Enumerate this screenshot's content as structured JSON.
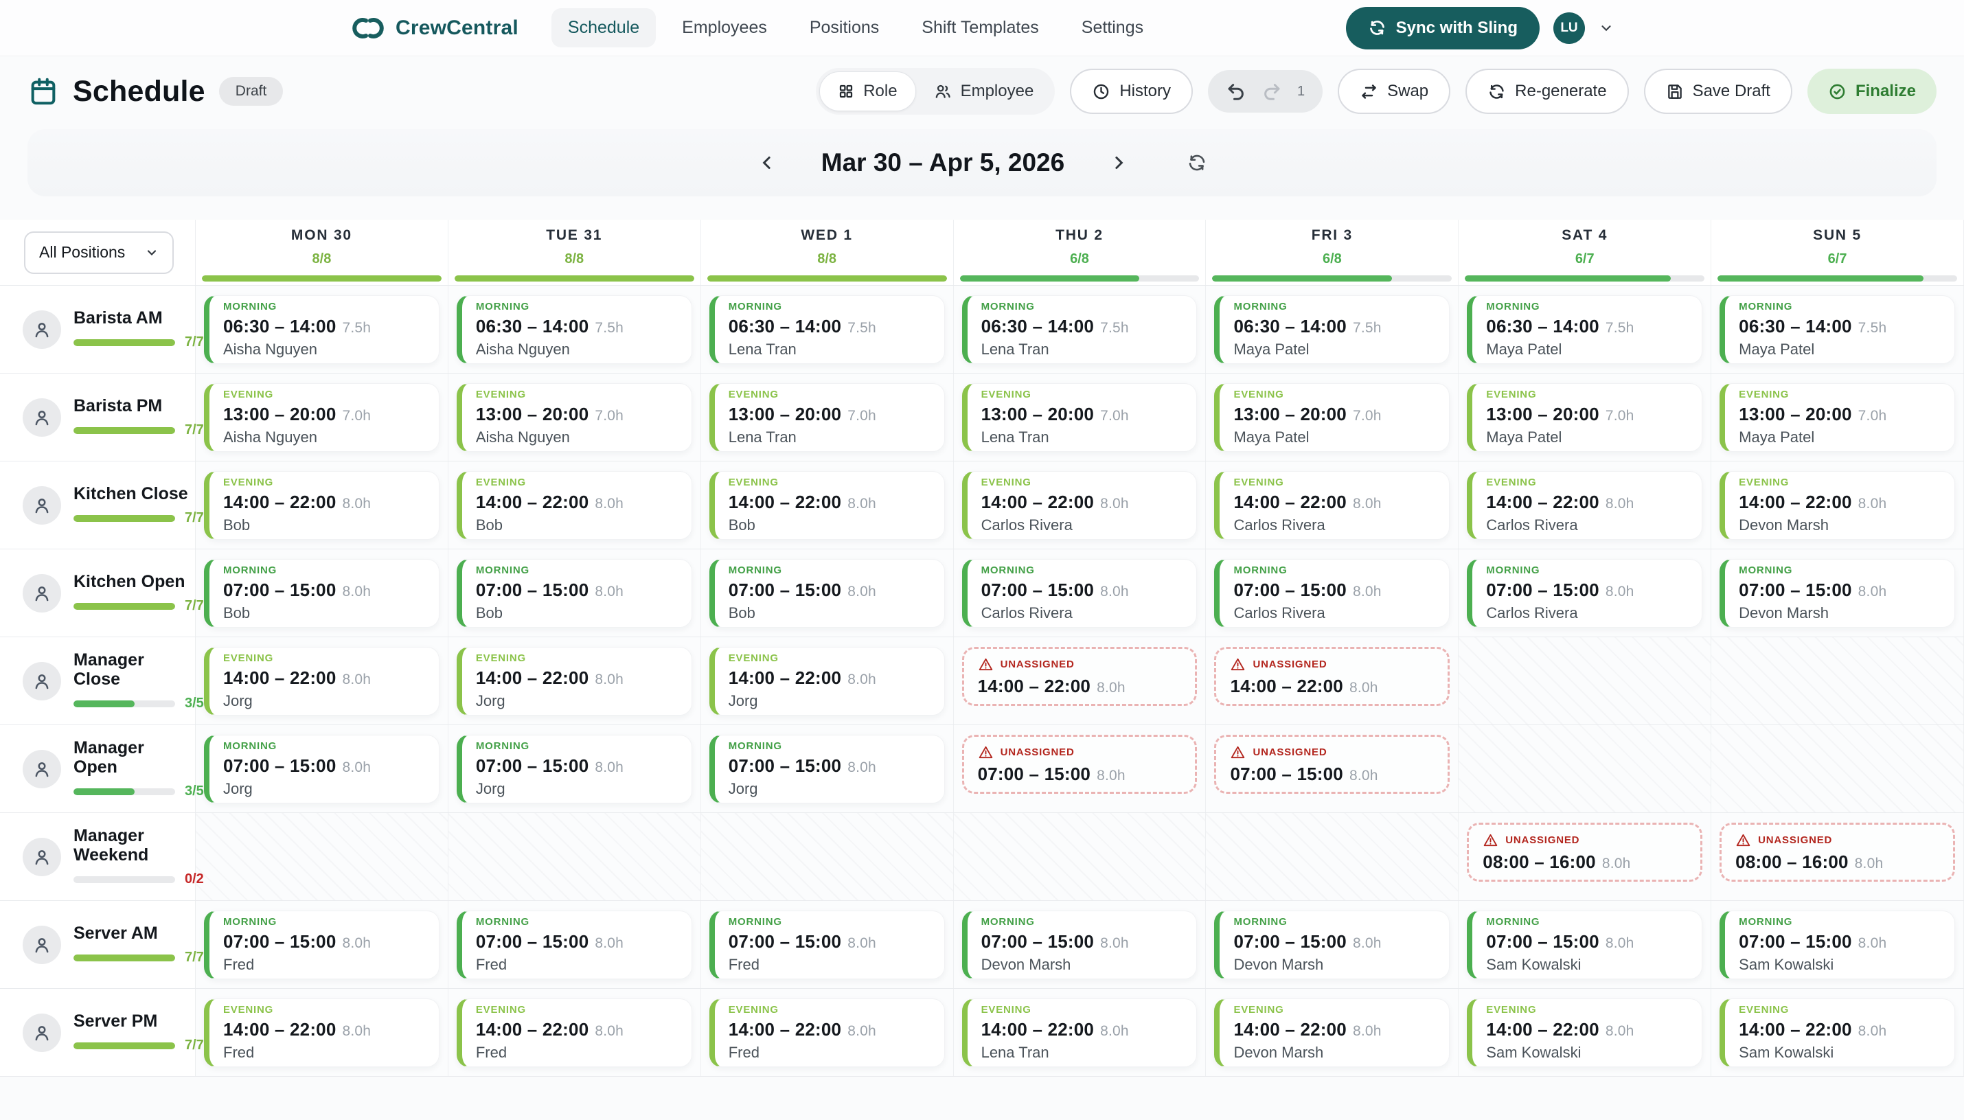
{
  "colors": {
    "brand_teal": "#175D5E",
    "green": "#4CAF50",
    "lime": "#8BC34A",
    "red": "#C62828",
    "track_gray": "#E8E9EB"
  },
  "nav": {
    "brand": "CrewCentral",
    "items": [
      {
        "label": "Schedule",
        "active": true
      },
      {
        "label": "Employees",
        "active": false
      },
      {
        "label": "Positions",
        "active": false
      },
      {
        "label": "Shift Templates",
        "active": false
      },
      {
        "label": "Settings",
        "active": false
      }
    ],
    "sync_button": "Sync with Sling",
    "avatar_initials": "LU"
  },
  "page_header": {
    "title": "Schedule",
    "status_badge": "Draft"
  },
  "toolbar": {
    "view_toggle": [
      {
        "label": "Role",
        "active": true
      },
      {
        "label": "Employee",
        "active": false
      }
    ],
    "history_label": "History",
    "undo_redo_count": "1",
    "swap_label": "Swap",
    "regenerate_label": "Re-generate",
    "save_draft_label": "Save Draft",
    "finalize_label": "Finalize"
  },
  "date_nav": {
    "range_label": "Mar 30 – Apr 5, 2026"
  },
  "filter": {
    "selected": "All Positions"
  },
  "unassigned_label": "UNASSIGNED",
  "week": {
    "days": [
      {
        "label": "MON 30",
        "count": "8/8",
        "pct": 100,
        "tone": "lime"
      },
      {
        "label": "TUE 31",
        "count": "8/8",
        "pct": 100,
        "tone": "lime"
      },
      {
        "label": "WED 1",
        "count": "8/8",
        "pct": 100,
        "tone": "lime"
      },
      {
        "label": "THU 2",
        "count": "6/8",
        "pct": 75,
        "tone": "green"
      },
      {
        "label": "FRI 3",
        "count": "6/8",
        "pct": 75,
        "tone": "green"
      },
      {
        "label": "SAT 4",
        "count": "6/7",
        "pct": 86,
        "tone": "green"
      },
      {
        "label": "SUN 5",
        "count": "6/7",
        "pct": 86,
        "tone": "green"
      }
    ]
  },
  "rows": [
    {
      "position": "Barista AM",
      "count": "7/7",
      "pct": 100,
      "tone": "lime",
      "cells": [
        {
          "kind": "shift",
          "period": "MORNING",
          "time": "06:30 – 14:00",
          "hours": "7.5h",
          "employee": "Aisha Nguyen"
        },
        {
          "kind": "shift",
          "period": "MORNING",
          "time": "06:30 – 14:00",
          "hours": "7.5h",
          "employee": "Aisha Nguyen"
        },
        {
          "kind": "shift",
          "period": "MORNING",
          "time": "06:30 – 14:00",
          "hours": "7.5h",
          "employee": "Lena Tran"
        },
        {
          "kind": "shift",
          "period": "MORNING",
          "time": "06:30 – 14:00",
          "hours": "7.5h",
          "employee": "Lena Tran"
        },
        {
          "kind": "shift",
          "period": "MORNING",
          "time": "06:30 – 14:00",
          "hours": "7.5h",
          "employee": "Maya Patel"
        },
        {
          "kind": "shift",
          "period": "MORNING",
          "time": "06:30 – 14:00",
          "hours": "7.5h",
          "employee": "Maya Patel"
        },
        {
          "kind": "shift",
          "period": "MORNING",
          "time": "06:30 – 14:00",
          "hours": "7.5h",
          "employee": "Maya Patel"
        }
      ]
    },
    {
      "position": "Barista PM",
      "count": "7/7",
      "pct": 100,
      "tone": "lime",
      "cells": [
        {
          "kind": "shift",
          "period": "EVENING",
          "time": "13:00 – 20:00",
          "hours": "7.0h",
          "employee": "Aisha Nguyen"
        },
        {
          "kind": "shift",
          "period": "EVENING",
          "time": "13:00 – 20:00",
          "hours": "7.0h",
          "employee": "Aisha Nguyen"
        },
        {
          "kind": "shift",
          "period": "EVENING",
          "time": "13:00 – 20:00",
          "hours": "7.0h",
          "employee": "Lena Tran"
        },
        {
          "kind": "shift",
          "period": "EVENING",
          "time": "13:00 – 20:00",
          "hours": "7.0h",
          "employee": "Lena Tran"
        },
        {
          "kind": "shift",
          "period": "EVENING",
          "time": "13:00 – 20:00",
          "hours": "7.0h",
          "employee": "Maya Patel"
        },
        {
          "kind": "shift",
          "period": "EVENING",
          "time": "13:00 – 20:00",
          "hours": "7.0h",
          "employee": "Maya Patel"
        },
        {
          "kind": "shift",
          "period": "EVENING",
          "time": "13:00 – 20:00",
          "hours": "7.0h",
          "employee": "Maya Patel"
        }
      ]
    },
    {
      "position": "Kitchen Close",
      "count": "7/7",
      "pct": 100,
      "tone": "lime",
      "cells": [
        {
          "kind": "shift",
          "period": "EVENING",
          "time": "14:00 – 22:00",
          "hours": "8.0h",
          "employee": "Bob"
        },
        {
          "kind": "shift",
          "period": "EVENING",
          "time": "14:00 – 22:00",
          "hours": "8.0h",
          "employee": "Bob"
        },
        {
          "kind": "shift",
          "period": "EVENING",
          "time": "14:00 – 22:00",
          "hours": "8.0h",
          "employee": "Bob"
        },
        {
          "kind": "shift",
          "period": "EVENING",
          "time": "14:00 – 22:00",
          "hours": "8.0h",
          "employee": "Carlos Rivera"
        },
        {
          "kind": "shift",
          "period": "EVENING",
          "time": "14:00 – 22:00",
          "hours": "8.0h",
          "employee": "Carlos Rivera"
        },
        {
          "kind": "shift",
          "period": "EVENING",
          "time": "14:00 – 22:00",
          "hours": "8.0h",
          "employee": "Carlos Rivera"
        },
        {
          "kind": "shift",
          "period": "EVENING",
          "time": "14:00 – 22:00",
          "hours": "8.0h",
          "employee": "Devon Marsh"
        }
      ]
    },
    {
      "position": "Kitchen Open",
      "count": "7/7",
      "pct": 100,
      "tone": "lime",
      "cells": [
        {
          "kind": "shift",
          "period": "MORNING",
          "time": "07:00 – 15:00",
          "hours": "8.0h",
          "employee": "Bob"
        },
        {
          "kind": "shift",
          "period": "MORNING",
          "time": "07:00 – 15:00",
          "hours": "8.0h",
          "employee": "Bob"
        },
        {
          "kind": "shift",
          "period": "MORNING",
          "time": "07:00 – 15:00",
          "hours": "8.0h",
          "employee": "Bob"
        },
        {
          "kind": "shift",
          "period": "MORNING",
          "time": "07:00 – 15:00",
          "hours": "8.0h",
          "employee": "Carlos Rivera"
        },
        {
          "kind": "shift",
          "period": "MORNING",
          "time": "07:00 – 15:00",
          "hours": "8.0h",
          "employee": "Carlos Rivera"
        },
        {
          "kind": "shift",
          "period": "MORNING",
          "time": "07:00 – 15:00",
          "hours": "8.0h",
          "employee": "Carlos Rivera"
        },
        {
          "kind": "shift",
          "period": "MORNING",
          "time": "07:00 – 15:00",
          "hours": "8.0h",
          "employee": "Devon Marsh"
        }
      ]
    },
    {
      "position": "Manager Close",
      "count": "3/5",
      "pct": 60,
      "tone": "green",
      "cells": [
        {
          "kind": "shift",
          "period": "EVENING",
          "time": "14:00 – 22:00",
          "hours": "8.0h",
          "employee": "Jorg"
        },
        {
          "kind": "shift",
          "period": "EVENING",
          "time": "14:00 – 22:00",
          "hours": "8.0h",
          "employee": "Jorg"
        },
        {
          "kind": "shift",
          "period": "EVENING",
          "time": "14:00 – 22:00",
          "hours": "8.0h",
          "employee": "Jorg"
        },
        {
          "kind": "unassigned",
          "time": "14:00 – 22:00",
          "hours": "8.0h"
        },
        {
          "kind": "unassigned",
          "time": "14:00 – 22:00",
          "hours": "8.0h"
        },
        {
          "kind": "empty"
        },
        {
          "kind": "empty"
        }
      ]
    },
    {
      "position": "Manager Open",
      "count": "3/5",
      "pct": 60,
      "tone": "green",
      "cells": [
        {
          "kind": "shift",
          "period": "MORNING",
          "time": "07:00 – 15:00",
          "hours": "8.0h",
          "employee": "Jorg"
        },
        {
          "kind": "shift",
          "period": "MORNING",
          "time": "07:00 – 15:00",
          "hours": "8.0h",
          "employee": "Jorg"
        },
        {
          "kind": "shift",
          "period": "MORNING",
          "time": "07:00 – 15:00",
          "hours": "8.0h",
          "employee": "Jorg"
        },
        {
          "kind": "unassigned",
          "time": "07:00 – 15:00",
          "hours": "8.0h"
        },
        {
          "kind": "unassigned",
          "time": "07:00 – 15:00",
          "hours": "8.0h"
        },
        {
          "kind": "empty"
        },
        {
          "kind": "empty"
        }
      ]
    },
    {
      "position": "Manager Weekend",
      "count": "0/2",
      "pct": 0,
      "tone": "red",
      "cells": [
        {
          "kind": "empty"
        },
        {
          "kind": "empty"
        },
        {
          "kind": "empty"
        },
        {
          "kind": "empty"
        },
        {
          "kind": "empty"
        },
        {
          "kind": "unassigned",
          "time": "08:00 – 16:00",
          "hours": "8.0h"
        },
        {
          "kind": "unassigned",
          "time": "08:00 – 16:00",
          "hours": "8.0h"
        }
      ]
    },
    {
      "position": "Server AM",
      "count": "7/7",
      "pct": 100,
      "tone": "lime",
      "cells": [
        {
          "kind": "shift",
          "period": "MORNING",
          "time": "07:00 – 15:00",
          "hours": "8.0h",
          "employee": "Fred"
        },
        {
          "kind": "shift",
          "period": "MORNING",
          "time": "07:00 – 15:00",
          "hours": "8.0h",
          "employee": "Fred"
        },
        {
          "kind": "shift",
          "period": "MORNING",
          "time": "07:00 – 15:00",
          "hours": "8.0h",
          "employee": "Fred"
        },
        {
          "kind": "shift",
          "period": "MORNING",
          "time": "07:00 – 15:00",
          "hours": "8.0h",
          "employee": "Devon Marsh"
        },
        {
          "kind": "shift",
          "period": "MORNING",
          "time": "07:00 – 15:00",
          "hours": "8.0h",
          "employee": "Devon Marsh"
        },
        {
          "kind": "shift",
          "period": "MORNING",
          "time": "07:00 – 15:00",
          "hours": "8.0h",
          "employee": "Sam Kowalski"
        },
        {
          "kind": "shift",
          "period": "MORNING",
          "time": "07:00 – 15:00",
          "hours": "8.0h",
          "employee": "Sam Kowalski"
        }
      ]
    },
    {
      "position": "Server PM",
      "count": "7/7",
      "pct": 100,
      "tone": "lime",
      "cells": [
        {
          "kind": "shift",
          "period": "EVENING",
          "time": "14:00 – 22:00",
          "hours": "8.0h",
          "employee": "Fred"
        },
        {
          "kind": "shift",
          "period": "EVENING",
          "time": "14:00 – 22:00",
          "hours": "8.0h",
          "employee": "Fred"
        },
        {
          "kind": "shift",
          "period": "EVENING",
          "time": "14:00 – 22:00",
          "hours": "8.0h",
          "employee": "Fred"
        },
        {
          "kind": "shift",
          "period": "EVENING",
          "time": "14:00 – 22:00",
          "hours": "8.0h",
          "employee": "Lena Tran"
        },
        {
          "kind": "shift",
          "period": "EVENING",
          "time": "14:00 – 22:00",
          "hours": "8.0h",
          "employee": "Devon Marsh"
        },
        {
          "kind": "shift",
          "period": "EVENING",
          "time": "14:00 – 22:00",
          "hours": "8.0h",
          "employee": "Sam Kowalski"
        },
        {
          "kind": "shift",
          "period": "EVENING",
          "time": "14:00 – 22:00",
          "hours": "8.0h",
          "employee": "Sam Kowalski"
        }
      ]
    }
  ]
}
